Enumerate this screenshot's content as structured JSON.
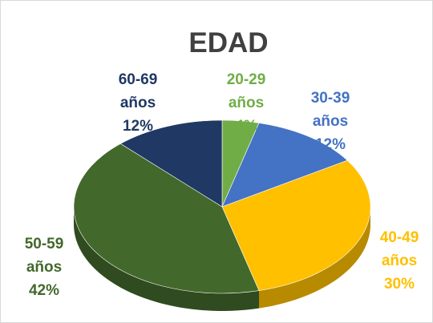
{
  "chart_data": {
    "type": "pie",
    "title": "EDAD",
    "categories": [
      "20-29 años",
      "30-39 años",
      "40-49 años",
      "50-59 años",
      "60-69 años"
    ],
    "values": [
      4,
      12,
      30,
      42,
      12
    ],
    "value_labels": [
      "4%",
      "12%",
      "30%",
      "42%",
      "12%"
    ],
    "colors": [
      "#70ad47",
      "#4472c4",
      "#ffc000",
      "#43682b",
      "#203864"
    ]
  }
}
